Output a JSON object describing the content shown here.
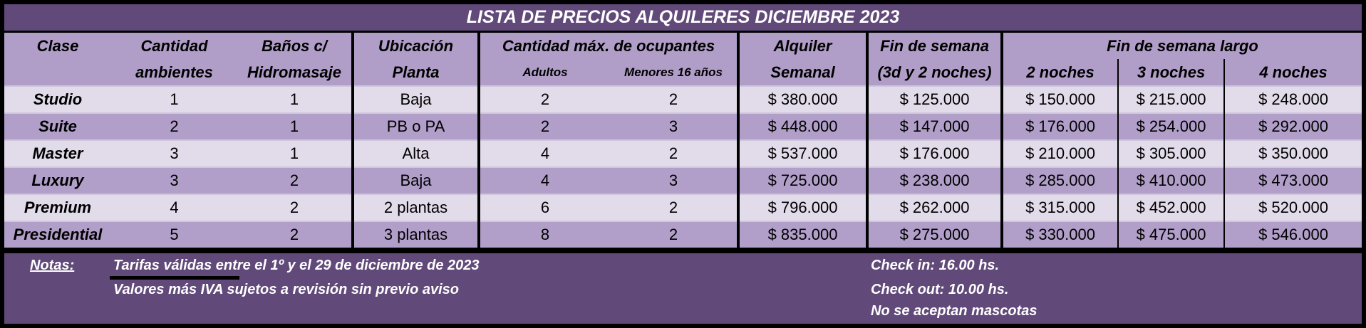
{
  "title": "LISTA DE PRECIOS ALQUILERES DICIEMBRE 2023",
  "headers": {
    "clase": "Clase",
    "ambientes_1": "Cantidad",
    "ambientes_2": "ambientes",
    "banos_1": "Baños c/",
    "banos_2": "Hidromasaje",
    "ubicacion_1": "Ubicación",
    "ubicacion_2": "Planta",
    "ocupantes": "Cantidad máx. de ocupantes",
    "adultos": "Adultos",
    "menores": "Menores 16 años",
    "alquiler_1": "Alquiler",
    "alquiler_2": "Semanal",
    "finde_1": "Fin de semana",
    "finde_2": "(3d y 2 noches)",
    "largo": "Fin de semana largo",
    "n2": "2 noches",
    "n3": "3 noches",
    "n4": "4 noches"
  },
  "rows": [
    [
      "Studio",
      "1",
      "1",
      "Baja",
      "2",
      "2",
      "$ 380.000",
      "$ 125.000",
      "$ 150.000",
      "$ 215.000",
      "$ 248.000"
    ],
    [
      "Suite",
      "2",
      "1",
      "PB o PA",
      "2",
      "3",
      "$ 448.000",
      "$ 147.000",
      "$ 176.000",
      "$ 254.000",
      "$ 292.000"
    ],
    [
      "Master",
      "3",
      "1",
      "Alta",
      "4",
      "2",
      "$ 537.000",
      "$ 176.000",
      "$ 210.000",
      "$ 305.000",
      "$ 350.000"
    ],
    [
      "Luxury",
      "3",
      "2",
      "Baja",
      "4",
      "3",
      "$ 725.000",
      "$ 238.000",
      "$ 285.000",
      "$ 410.000",
      "$ 473.000"
    ],
    [
      "Premium",
      "4",
      "2",
      "2 plantas",
      "6",
      "2",
      "$ 796.000",
      "$ 262.000",
      "$ 315.000",
      "$ 452.000",
      "$ 520.000"
    ],
    [
      "Presidential",
      "5",
      "2",
      "3 plantas",
      "8",
      "2",
      "$ 835.000",
      "$ 275.000",
      "$ 330.000",
      "$ 475.000",
      "$ 546.000"
    ]
  ],
  "notes": {
    "label": "Notas:",
    "line1": "Tarifas válidas entre el 1º y el 29 de diciembre de 2023",
    "line2": "Valores más IVA sujetos a revisión sin previo aviso",
    "checkin": "Check in: 16.00 hs.",
    "checkout": "Check out: 10.00 hs.",
    "pets": "No se aceptan mascotas"
  },
  "colors": {
    "title_bg": "#614a7a",
    "header_bg": "#b09ec8",
    "row_light": "#e2dcea",
    "row_medium": "#b19fca"
  }
}
